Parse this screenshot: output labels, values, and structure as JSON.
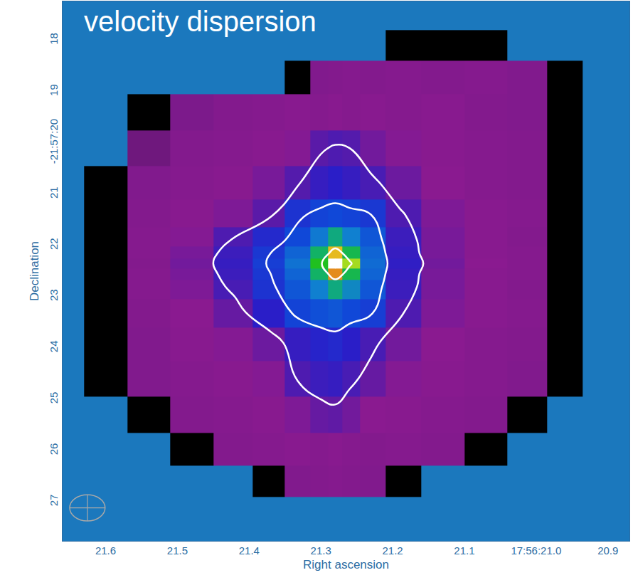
{
  "chart_data": {
    "type": "heatmap",
    "title": "velocity dispersion",
    "x_label": "Right ascension",
    "y_label": "Declination",
    "x": [
      21.6,
      21.54,
      21.48,
      21.42,
      21.37,
      21.33,
      21.3,
      21.28,
      21.26,
      21.23,
      21.19,
      21.13,
      21.07,
      21.01,
      20.96
    ],
    "y": [
      18.1,
      18.7,
      19.4,
      20.1,
      20.8,
      21.4,
      21.9,
      22.15,
      22.35,
      22.55,
      22.8,
      23.3,
      23.9,
      24.6,
      25.3,
      26.0,
      26.6
    ],
    "z": [
      [
        null,
        null,
        null,
        null,
        null,
        null,
        null,
        null,
        null,
        null,
        0,
        0,
        0,
        null,
        null
      ],
      [
        null,
        null,
        null,
        null,
        null,
        0,
        20,
        21,
        22,
        21,
        22,
        21,
        22,
        20,
        0
      ],
      [
        null,
        0,
        18,
        21,
        22,
        23,
        22,
        23,
        22,
        23,
        22,
        23,
        21,
        20,
        0
      ],
      [
        null,
        16,
        21,
        22,
        23,
        25,
        32,
        34,
        33,
        28,
        25,
        23,
        22,
        21,
        0
      ],
      [
        0,
        20,
        22,
        23,
        27,
        33,
        38,
        40,
        38,
        35,
        29,
        24,
        22,
        21,
        0
      ],
      [
        0,
        21,
        23,
        26,
        32,
        44,
        47,
        48,
        47,
        45,
        34,
        26,
        23,
        22,
        0
      ],
      [
        0,
        22,
        25,
        34,
        42,
        48,
        55,
        62,
        56,
        50,
        37,
        27,
        23,
        21,
        0
      ],
      [
        0,
        22,
        27,
        37,
        45,
        52,
        64,
        78,
        66,
        52,
        38,
        27,
        23,
        22,
        0
      ],
      [
        0,
        21,
        28,
        38,
        46,
        54,
        70,
        100,
        74,
        53,
        39,
        28,
        24,
        22,
        0
      ],
      [
        0,
        22,
        27,
        37,
        45,
        52,
        64,
        80,
        66,
        52,
        38,
        27,
        23,
        22,
        0
      ],
      [
        0,
        22,
        26,
        35,
        44,
        50,
        56,
        62,
        57,
        50,
        37,
        27,
        23,
        21,
        0
      ],
      [
        0,
        21,
        24,
        30,
        40,
        47,
        49,
        50,
        48,
        46,
        34,
        26,
        23,
        22,
        0
      ],
      [
        0,
        20,
        23,
        25,
        29,
        38,
        41,
        42,
        40,
        35,
        28,
        24,
        22,
        21,
        0
      ],
      [
        0,
        20,
        22,
        23,
        25,
        34,
        37,
        38,
        35,
        30,
        25,
        23,
        22,
        20,
        0
      ],
      [
        null,
        0,
        21,
        22,
        23,
        26,
        30,
        31,
        28,
        24,
        23,
        22,
        21,
        0,
        null
      ],
      [
        null,
        null,
        0,
        21,
        22,
        23,
        22,
        23,
        22,
        21,
        22,
        21,
        0,
        null,
        null
      ],
      [
        null,
        null,
        null,
        null,
        0,
        20,
        21,
        22,
        21,
        20,
        0,
        null,
        null,
        null,
        null
      ]
    ],
    "zlim": [
      0,
      100
    ],
    "contour_levels": [
      33,
      45,
      72,
      92
    ],
    "xlim": [
      21.66,
      20.87
    ],
    "ylim": [
      27.76,
      17.24
    ],
    "xticks": [
      21.6,
      21.5,
      21.4,
      21.3,
      21.2,
      21.1,
      {
        "value": 21,
        "label": "17:56:21.0"
      },
      20.9
    ],
    "yticks": [
      18,
      19,
      {
        "value": 20,
        "label": "-21:57:20"
      },
      21,
      22,
      23,
      24,
      25,
      26,
      27
    ],
    "grid": false
  }
}
